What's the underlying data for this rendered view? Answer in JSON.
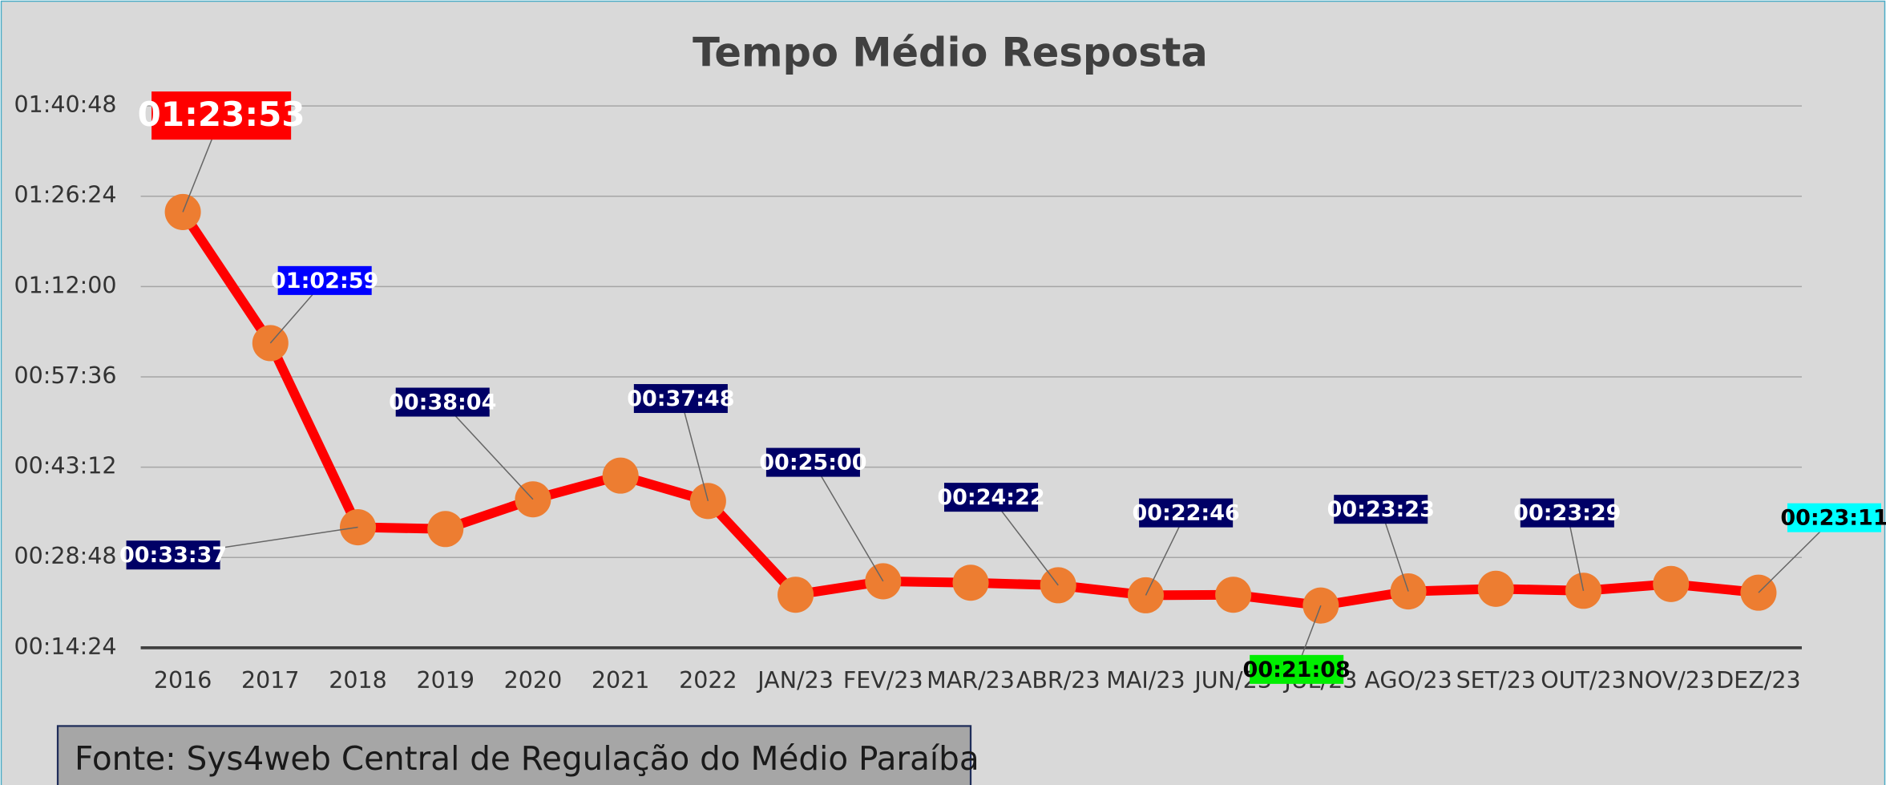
{
  "chart_data": {
    "type": "line",
    "title": "Tempo Médio Resposta",
    "categories": [
      "2016",
      "2017",
      "2018",
      "2019",
      "2020",
      "2021",
      "2022",
      "JAN/23",
      "FEV/23",
      "MAR/23",
      "ABR/23",
      "MAI/23",
      "JUN/23",
      "JUL/23",
      "AGO/23",
      "SET/23",
      "OUT/23",
      "NOV/23",
      "DEZ/23"
    ],
    "series": [
      {
        "name": "Tempo Médio Resposta",
        "color": "#ff0000",
        "marker_color": "#ed7d31",
        "values": [
          5033,
          3779,
          2017,
          2000,
          2284,
          2511,
          2268,
          1371,
          1500,
          1486,
          1462,
          1366,
          1371,
          1268,
          1403,
          1428,
          1409,
          1474,
          1391
        ],
        "value_labels": [
          "01:23:53",
          "01:02:59",
          "00:33:37",
          null,
          "00:38:04",
          null,
          "00:37:48",
          null,
          "00:25:00",
          null,
          "00:24:22",
          "00:22:46",
          null,
          "00:21:08",
          "00:23:23",
          null,
          "00:23:29",
          null,
          "00:23:11"
        ],
        "value_label_colors": [
          "#ff0000",
          "#0000ff",
          "#000066",
          null,
          "#000066",
          null,
          "#000066",
          null,
          "#000066",
          null,
          "#000066",
          "#000066",
          null,
          "#00ee00",
          "#000066",
          null,
          "#000066",
          null,
          "#00ffff"
        ]
      }
    ],
    "ylim": [
      864,
      6048
    ],
    "yticks": [
      {
        "value": 864,
        "label": "00:14:24"
      },
      {
        "value": 1728,
        "label": "00:28:48"
      },
      {
        "value": 2592,
        "label": "00:43:12"
      },
      {
        "value": 3456,
        "label": "00:57:36"
      },
      {
        "value": 4320,
        "label": "01:12:00"
      },
      {
        "value": 5184,
        "label": "01:26:24"
      },
      {
        "value": 6048,
        "label": "01:40:48"
      }
    ],
    "grid": true,
    "source": "Fonte: Sys4web Central de Regulação do Médio Paraíba"
  }
}
